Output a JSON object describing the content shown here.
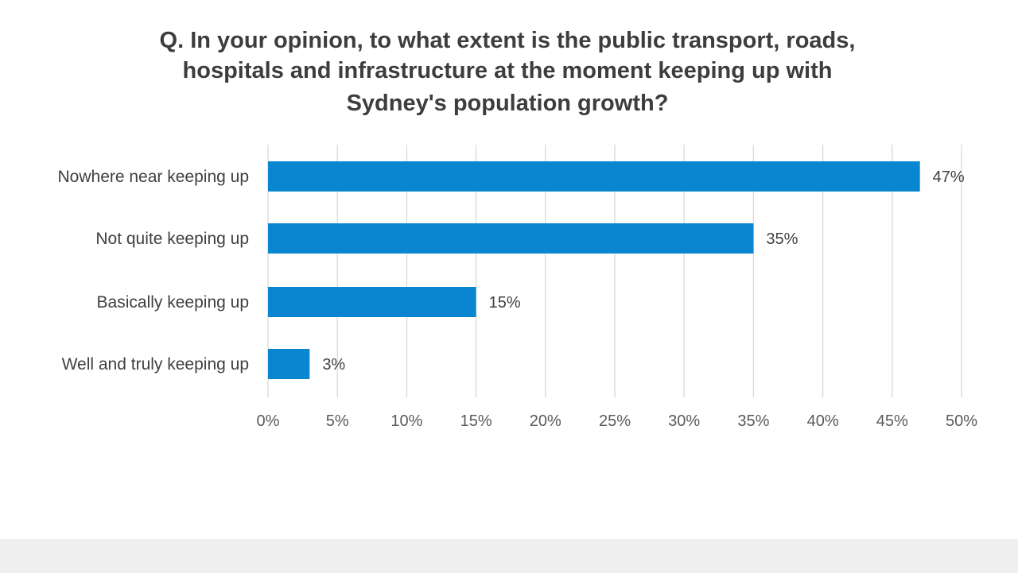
{
  "chart_data": {
    "type": "bar",
    "orientation": "horizontal",
    "title_lines": [
      "Q.  In your opinion, to what extent is the public transport, roads,",
      "hospitals and infrastructure at the moment keeping up with",
      "Sydney's population growth?"
    ],
    "categories": [
      "Nowhere near keeping up",
      "Not quite keeping up",
      "Basically keeping up",
      "Well and truly keeping up"
    ],
    "values": [
      47,
      35,
      15,
      3
    ],
    "data_labels": [
      "47%",
      "35%",
      "15%",
      "3%"
    ],
    "xlim": [
      0,
      50
    ],
    "x_ticks": [
      0,
      5,
      10,
      15,
      20,
      25,
      30,
      35,
      40,
      45,
      50
    ],
    "x_tick_labels": [
      "0%",
      "5%",
      "10%",
      "15%",
      "20%",
      "25%",
      "30%",
      "35%",
      "40%",
      "45%",
      "50%"
    ],
    "grid": true,
    "legend": "none",
    "bar_color": "#0a86d0"
  }
}
